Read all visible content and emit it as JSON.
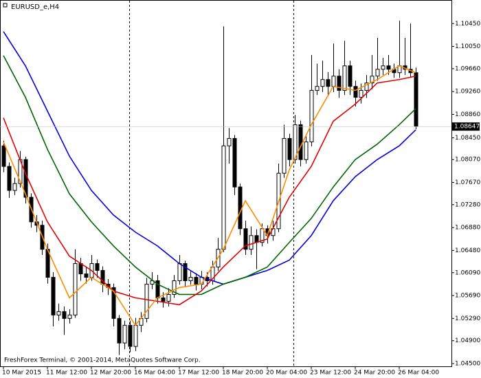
{
  "chart_data": {
    "type": "candlestick",
    "title": "EURUSD_e,H4",
    "watermark": "FreshForex Terminal, © 2001-2014, MetaQuotes Software Corp.",
    "categories": [
      "10 Mar 2015",
      null,
      null,
      null,
      null,
      null,
      null,
      null,
      "11 Mar 12:00",
      null,
      null,
      null,
      null,
      null,
      null,
      null,
      "12 Mar 20:00",
      null,
      null,
      null,
      null,
      null,
      null,
      null,
      "16 Mar 04:00",
      null,
      null,
      null,
      null,
      null,
      null,
      null,
      "17 Mar 12:00",
      null,
      null,
      null,
      null,
      null,
      null,
      null,
      "18 Mar 20:00",
      null,
      null,
      null,
      null,
      null,
      null,
      null,
      "20 Mar 04:00",
      null,
      null,
      null,
      null,
      null,
      null,
      null,
      "23 Mar 12:00",
      null,
      null,
      null,
      null,
      null,
      null,
      null,
      "24 Mar 20:00",
      null,
      null,
      null,
      null,
      null,
      null,
      null,
      "26 Mar 04:00",
      null,
      null,
      null
    ],
    "open": [
      1.0831,
      1.0795,
      1.0753,
      1.0765,
      1.0807,
      1.0741,
      1.0698,
      1.0692,
      1.065,
      1.0601,
      1.0535,
      1.0541,
      1.0529,
      1.0535,
      1.0625,
      1.0607,
      1.0601,
      1.0625,
      1.0613,
      1.0589,
      1.0583,
      1.0529,
      1.0486,
      1.0517,
      1.048,
      1.0517,
      1.0529,
      1.0589,
      1.0595,
      1.0565,
      1.0559,
      1.0571,
      1.0595,
      1.0625,
      1.0595,
      1.0601,
      1.0589,
      1.0601,
      1.0595,
      1.0619,
      1.065,
      1.0831,
      1.0844,
      1.0759,
      1.0686,
      1.065,
      1.0674,
      1.0662,
      1.0686,
      1.0674,
      1.0686,
      1.0783,
      1.0844,
      1.0807,
      1.0868,
      1.0807,
      1.0838,
      1.0928,
      1.0935,
      1.0947,
      1.0935,
      1.0953,
      1.0928,
      1.0971,
      1.0935,
      1.0916,
      1.0928,
      1.0941,
      1.0953,
      1.0965,
      1.0971,
      1.0965,
      1.0959,
      1.0971,
      1.0965,
      1.0959
    ],
    "high": [
      1.084,
      1.0802,
      1.0775,
      1.0822,
      1.0812,
      1.0748,
      1.071,
      1.07,
      1.066,
      1.061,
      1.0555,
      1.055,
      1.0545,
      1.065,
      1.0635,
      1.062,
      1.064,
      1.0632,
      1.062,
      1.0598,
      1.059,
      1.0535,
      1.0525,
      1.0525,
      1.053,
      1.054,
      1.06,
      1.061,
      1.0605,
      1.0575,
      1.0582,
      1.0605,
      1.064,
      1.063,
      1.0612,
      1.0608,
      1.0612,
      1.061,
      1.063,
      1.067,
      1.104,
      1.0862,
      1.085,
      1.0765,
      1.07,
      1.069,
      1.0685,
      1.0695,
      1.0692,
      1.07,
      1.08,
      1.0868,
      1.0852,
      1.0885,
      1.0875,
      1.085,
      1.099,
      1.0975,
      1.098,
      1.096,
      1.101,
      1.0965,
      1.1015,
      1.098,
      1.0945,
      1.094,
      1.0955,
      1.099,
      1.102,
      1.0985,
      1.099,
      1.0975,
      1.105,
      1.102,
      1.1045,
      1.0968
    ],
    "low": [
      1.0785,
      1.074,
      1.0745,
      1.0758,
      1.073,
      1.0688,
      1.068,
      1.064,
      1.059,
      1.0515,
      1.0525,
      1.05,
      1.052,
      1.053,
      1.0595,
      1.059,
      1.0595,
      1.06,
      1.0575,
      1.057,
      1.0515,
      1.0465,
      1.0475,
      1.047,
      1.0472,
      1.0505,
      1.0522,
      1.058,
      1.0555,
      1.0548,
      1.055,
      1.0565,
      1.0588,
      1.0585,
      1.0588,
      1.0578,
      1.058,
      1.0585,
      1.0588,
      1.0612,
      1.0645,
      1.08,
      1.0745,
      1.0675,
      1.064,
      1.064,
      1.0615,
      1.0655,
      1.066,
      1.0665,
      1.068,
      1.0775,
      1.0795,
      1.08,
      1.0795,
      1.08,
      1.083,
      1.092,
      1.0925,
      1.092,
      1.0925,
      1.0915,
      1.092,
      1.092,
      1.09,
      1.0905,
      1.0915,
      1.093,
      1.0945,
      1.0955,
      1.0955,
      1.095,
      1.095,
      1.0955,
      1.095,
      1.086
    ],
    "close": [
      1.0795,
      1.0753,
      1.0765,
      1.0807,
      1.0741,
      1.0698,
      1.0692,
      1.065,
      1.0601,
      1.0535,
      1.0541,
      1.0529,
      1.0535,
      1.0625,
      1.0607,
      1.0601,
      1.0625,
      1.0613,
      1.0589,
      1.0583,
      1.0529,
      1.0486,
      1.0517,
      1.048,
      1.0517,
      1.0529,
      1.0589,
      1.0595,
      1.0565,
      1.0559,
      1.0571,
      1.0595,
      1.0625,
      1.0595,
      1.0601,
      1.0589,
      1.0601,
      1.0595,
      1.0619,
      1.065,
      1.0831,
      1.0844,
      1.0759,
      1.0686,
      1.065,
      1.0674,
      1.0662,
      1.0686,
      1.0674,
      1.0686,
      1.0783,
      1.0844,
      1.0807,
      1.0868,
      1.0807,
      1.0838,
      1.0928,
      1.0935,
      1.0947,
      1.0935,
      1.0953,
      1.0928,
      1.0971,
      1.0935,
      1.0916,
      1.0928,
      1.0941,
      1.0953,
      1.0965,
      1.0971,
      1.0965,
      1.0959,
      1.0971,
      1.0965,
      1.0959,
      1.0865
    ],
    "indicators": [
      {
        "color": "#0000dd",
        "x": [
          0,
          4,
          8,
          12,
          16,
          20,
          24,
          28,
          32,
          36,
          40,
          44,
          48,
          52,
          56,
          60,
          64,
          68,
          72,
          75
        ],
        "values": [
          1.1031,
          1.0971,
          1.0892,
          1.0813,
          1.0753,
          1.071,
          1.068,
          1.0656,
          1.0625,
          1.0601,
          1.0589,
          1.0601,
          1.0613,
          1.0631,
          1.0674,
          1.0735,
          1.0777,
          1.0807,
          1.0831,
          1.0859
        ]
      },
      {
        "color": "#006400",
        "x": [
          0,
          4,
          8,
          12,
          16,
          20,
          24,
          28,
          32,
          36,
          40,
          44,
          48,
          52,
          56,
          60,
          64,
          68,
          72,
          75
        ],
        "values": [
          1.0989,
          1.0916,
          1.0825,
          1.0747,
          1.0698,
          1.0656,
          1.0619,
          1.0589,
          1.0571,
          1.0571,
          1.0589,
          1.0601,
          1.0619,
          1.0662,
          1.0704,
          1.0759,
          1.0807,
          1.0834,
          1.0868,
          1.0896
        ]
      },
      {
        "color": "#e00000",
        "x": [
          0,
          4,
          8,
          12,
          16,
          20,
          24,
          28,
          32,
          36,
          40,
          44,
          48,
          52,
          56,
          60,
          64,
          68,
          72,
          75
        ],
        "values": [
          1.088,
          1.0783,
          1.0698,
          1.0638,
          1.0613,
          1.0577,
          1.0565,
          1.0559,
          1.0553,
          1.0577,
          1.0619,
          1.0656,
          1.0668,
          1.0741,
          1.0795,
          1.0874,
          1.0904,
          1.0941,
          1.0947,
          1.0953
        ]
      },
      {
        "color": "#ff8c00",
        "x": [
          0,
          4,
          8,
          12,
          16,
          20,
          24,
          28,
          32,
          36,
          40,
          44,
          48,
          52,
          56,
          60,
          64,
          68,
          72,
          75
        ],
        "values": [
          1.0838,
          1.0747,
          1.065,
          1.0565,
          1.0601,
          1.0577,
          1.0517,
          1.0565,
          1.0583,
          1.0589,
          1.065,
          1.0735,
          1.0674,
          1.0789,
          1.0868,
          1.0935,
          1.0928,
          1.0947,
          1.0971,
          1.0959
        ]
      }
    ],
    "current_price": {
      "value": 1.08647,
      "label": "1.08647"
    },
    "ylim": [
      1.04452,
      1.10862
    ],
    "yticks": [
      {
        "value": 1.1045,
        "label": "1.10450"
      },
      {
        "value": 1.1005,
        "label": "1.10050"
      },
      {
        "value": 1.0966,
        "label": "1.09660"
      },
      {
        "value": 1.0926,
        "label": "1.09260"
      },
      {
        "value": 1.0886,
        "label": "1.08860"
      },
      {
        "value": 1.0845,
        "label": "1.08450"
      },
      {
        "value": 1.0807,
        "label": "1.08070"
      },
      {
        "value": 1.0767,
        "label": "1.07670"
      },
      {
        "value": 1.0728,
        "label": "1.07280"
      },
      {
        "value": 1.0688,
        "label": "1.06880"
      },
      {
        "value": 1.0648,
        "label": "1.06480"
      },
      {
        "value": 1.0609,
        "label": "1.06090"
      },
      {
        "value": 1.0569,
        "label": "1.05690"
      },
      {
        "value": 1.0529,
        "label": "1.05290"
      },
      {
        "value": 1.049,
        "label": "1.04900"
      },
      {
        "value": 1.045,
        "label": "1.04500"
      }
    ]
  }
}
